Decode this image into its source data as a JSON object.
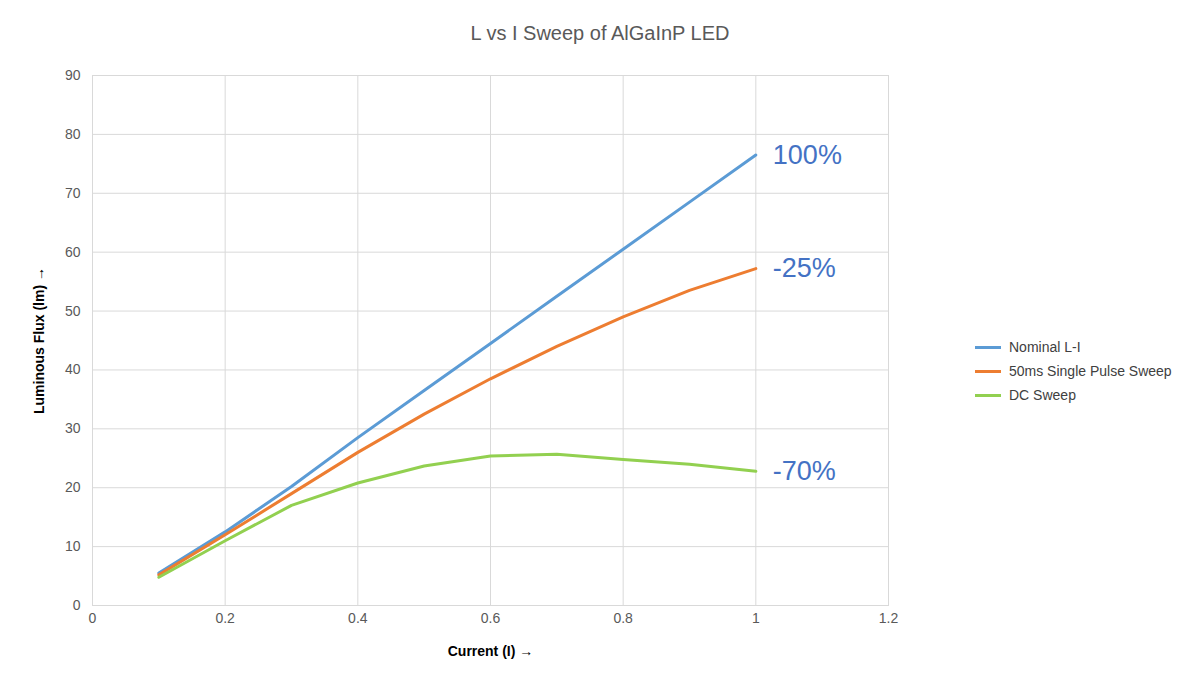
{
  "chart_data": {
    "type": "line",
    "title": "L vs I Sweep of AlGaInP LED",
    "x_label": "Current (I)",
    "y_label": "Luminous Flux (lm)",
    "x": [
      0.1,
      0.2,
      0.3,
      0.4,
      0.5,
      0.6,
      0.7,
      0.8,
      0.9,
      1
    ],
    "series": [
      {
        "name": "Nominal L-I",
        "color": "#5b9bd5",
        "values": [
          5.5,
          12.5,
          20.2,
          28.5,
          36.5,
          44.5,
          52.5,
          60.5,
          68.5,
          76.5
        ]
      },
      {
        "name": "50ms Single Pulse Sweep",
        "color": "#ed7d31",
        "values": [
          5.2,
          12,
          19,
          26,
          32.5,
          38.5,
          44,
          49,
          53.5,
          57.2
        ]
      },
      {
        "name": "DC Sweep",
        "color": "#92d050",
        "values": [
          4.8,
          11,
          17,
          20.8,
          23.7,
          25.4,
          25.7,
          24.8,
          24,
          22.8
        ]
      }
    ],
    "xlim": [
      0,
      1.2
    ],
    "xticks": [
      0,
      0.2,
      0.4,
      0.6,
      0.8,
      1,
      1.2
    ],
    "ylim": [
      0,
      90
    ],
    "yticks": [
      0,
      10,
      20,
      30,
      40,
      50,
      60,
      70,
      80,
      90
    ],
    "grid": true,
    "legend": "right",
    "annotations": [
      {
        "text": "100%",
        "x": 1,
        "y": 76.5,
        "color": "#4472c4"
      },
      {
        "text": "-25%",
        "x": 1,
        "y": 57.2,
        "color": "#4472c4"
      },
      {
        "text": "-70%",
        "x": 1,
        "y": 22.8,
        "color": "#4472c4"
      }
    ]
  }
}
